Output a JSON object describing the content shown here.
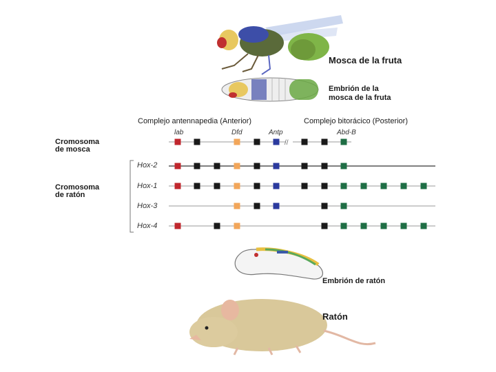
{
  "labels": {
    "fly": "Mosca de la fruta",
    "fly_embryo_l1": "Embrión de la",
    "fly_embryo_l2": "mosca de la fruta",
    "antennapedia": "Complejo antennapedia (Anterior)",
    "bithorax": "Complejo bitorácico (Posterior)",
    "fly_chrom_l1": "Cromosoma",
    "fly_chrom_l2": "de mosca",
    "mouse_chrom_l1": "Cromosoma",
    "mouse_chrom_l2": "de ratón",
    "mouse_embryo": "Embrión de ratón",
    "mouse": "Ratón"
  },
  "fly_genes": [
    "lab",
    "Dfd",
    "Antp",
    "Abd-B"
  ],
  "mouse_rows": [
    "Hox-2",
    "Hox-1",
    "Hox-3",
    "Hox-4"
  ],
  "colors": {
    "red": "#c0272d",
    "black": "#1a1a1a",
    "orange": "#f2a65a",
    "blue": "#2b3a9e",
    "green": "#1f6e45"
  },
  "fly_chromosome": [
    "red",
    "black",
    "gap",
    "orange",
    "black",
    "blue",
    "gap",
    "black",
    "black",
    "green"
  ],
  "mouse_chromosomes": [
    [
      "red",
      "black",
      "black",
      "orange",
      "black",
      "blue",
      "gap",
      "black",
      "black",
      "green"
    ],
    [
      "red",
      "black",
      "black",
      "orange",
      "black",
      "blue",
      "gap",
      "black",
      "black",
      "green",
      "green",
      "green",
      "green",
      "green"
    ],
    [
      "gap",
      "gap",
      "gap",
      "orange",
      "black",
      "blue",
      "gap",
      "gap",
      "black",
      "green"
    ],
    [
      "red",
      "gap",
      "black",
      "orange",
      "gap",
      "gap",
      "gap",
      "gap",
      "black",
      "green",
      "green",
      "green",
      "green",
      "green"
    ]
  ]
}
